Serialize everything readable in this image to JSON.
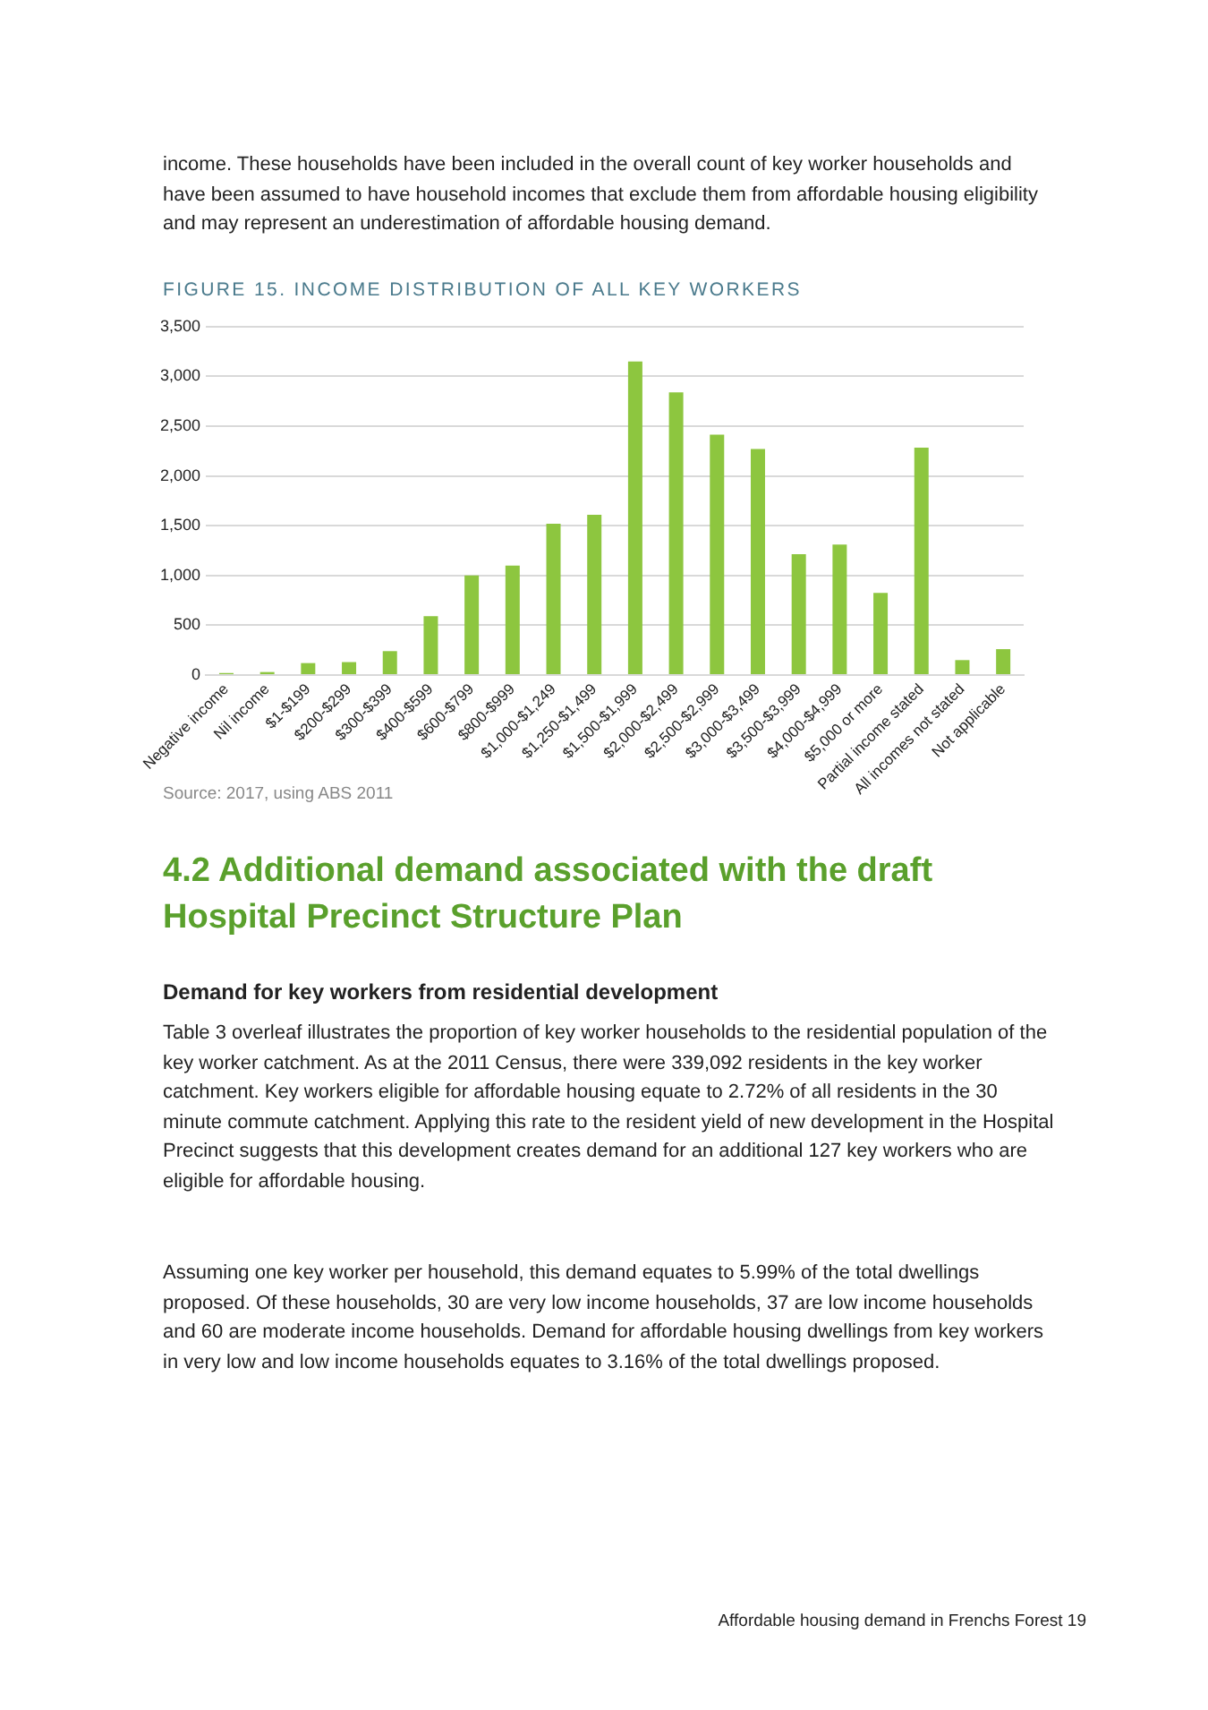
{
  "chart_data": {
    "type": "bar",
    "title": "FIGURE 15. INCOME DISTRIBUTION OF ALL KEY WORKERS",
    "categories": [
      "Negative income",
      "Nil income",
      "$1-$199",
      "$200-$299",
      "$300-$399",
      "$400-$599",
      "$600-$799",
      "$800-$999",
      "$1,000-$1,249",
      "$1,250-$1,499",
      "$1,500-$1,999",
      "$2,000-$2,499",
      "$2,500-$2,999",
      "$3,000-$3,499",
      "$3,500-$3,999",
      "$4,000-$4,999",
      "$5,000 or more",
      "Partial income stated",
      "All incomes not stated",
      "Not applicable"
    ],
    "values": [
      20,
      30,
      120,
      130,
      240,
      590,
      1000,
      1100,
      1520,
      1610,
      3150,
      2840,
      2415,
      2270,
      1215,
      1310,
      825,
      2285,
      150,
      260
    ],
    "color": "#8dc63f",
    "ylim": [
      0,
      3500
    ],
    "yticks": [
      {
        "value": 0,
        "label": "0"
      },
      {
        "value": 500,
        "label": "500"
      },
      {
        "value": 1000,
        "label": "1,000"
      },
      {
        "value": 1500,
        "label": "1,500"
      },
      {
        "value": 2000,
        "label": "2,000"
      },
      {
        "value": 2500,
        "label": "2,500"
      },
      {
        "value": 3000,
        "label": "3,000"
      },
      {
        "value": 3500,
        "label": "3,500"
      }
    ],
    "grid": "y",
    "legend": false,
    "annotations": [
      "income. These households have been included in the overall count of key worker households and have been assumed to have household incomes that exclude them from affordable housing eligibility and may represent an underestimation of affordable housing demand.",
      "Source: 2017, using ABS 2011",
      "4.2 Additional demand associated with the draft Hospital Precinct Structure Plan",
      "Demand for key workers from residential development",
      "Table 3 overleaf illustrates the proportion of key worker households to the residential population of the key worker catchment. As at the 2011 Census, there were 339,092 residents in the key worker catchment. Key workers eligible for affordable housing equate to 2.72% of all residents in the 30 minute commute catchment. Applying this rate to the resident yield of new development in the Hospital Precinct suggests that this development creates demand for an additional 127 key workers who are eligible for affordable housing.",
      "Assuming one key worker per household, this demand equates to 5.99% of the total dwellings proposed. Of these households, 30 are very low income households, 37 are low income households and 60 are moderate income households. Demand for affordable housing dwellings from key workers in very low and low income households equates to 3.16% of the total dwellings proposed.",
      "Affordable housing demand in Frenchs Forest 19"
    ]
  }
}
